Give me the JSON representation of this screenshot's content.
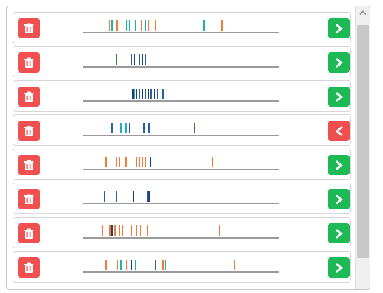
{
  "colors": {
    "red": "#f05050",
    "green": "#1db954",
    "orange": "#f27b35",
    "teal": "#18b4b4",
    "blue": "#2c5fa0",
    "navy": "#1d3f7a",
    "darkgreen": "#3f7f3f",
    "line": "#9a9a9a"
  },
  "rows": [
    {
      "action": "right",
      "ticks": [
        {
          "pos": 0.13,
          "color": "orange"
        },
        {
          "pos": 0.145,
          "color": "teal"
        },
        {
          "pos": 0.17,
          "color": "orange"
        },
        {
          "pos": 0.22,
          "color": "teal"
        },
        {
          "pos": 0.235,
          "color": "teal"
        },
        {
          "pos": 0.265,
          "color": "teal"
        },
        {
          "pos": 0.295,
          "color": "orange"
        },
        {
          "pos": 0.315,
          "color": "teal"
        },
        {
          "pos": 0.33,
          "color": "orange"
        },
        {
          "pos": 0.365,
          "color": "orange"
        },
        {
          "pos": 0.615,
          "color": "teal"
        },
        {
          "pos": 0.705,
          "color": "orange"
        }
      ]
    },
    {
      "action": "right",
      "ticks": [
        {
          "pos": 0.165,
          "color": "darkgreen"
        },
        {
          "pos": 0.245,
          "color": "blue"
        },
        {
          "pos": 0.26,
          "color": "navy"
        },
        {
          "pos": 0.285,
          "color": "blue"
        },
        {
          "pos": 0.3,
          "color": "navy"
        },
        {
          "pos": 0.315,
          "color": "blue"
        }
      ]
    },
    {
      "action": "right",
      "ticks": [
        {
          "pos": 0.25,
          "color": "navy"
        },
        {
          "pos": 0.26,
          "color": "teal"
        },
        {
          "pos": 0.27,
          "color": "navy"
        },
        {
          "pos": 0.285,
          "color": "blue"
        },
        {
          "pos": 0.3,
          "color": "navy"
        },
        {
          "pos": 0.315,
          "color": "blue"
        },
        {
          "pos": 0.33,
          "color": "navy"
        },
        {
          "pos": 0.345,
          "color": "blue"
        },
        {
          "pos": 0.36,
          "color": "navy"
        },
        {
          "pos": 0.375,
          "color": "blue"
        },
        {
          "pos": 0.405,
          "color": "blue"
        }
      ]
    },
    {
      "action": "left",
      "ticks": [
        {
          "pos": 0.145,
          "color": "blue"
        },
        {
          "pos": 0.19,
          "color": "teal"
        },
        {
          "pos": 0.215,
          "color": "teal"
        },
        {
          "pos": 0.235,
          "color": "blue"
        },
        {
          "pos": 0.31,
          "color": "blue"
        },
        {
          "pos": 0.335,
          "color": "blue"
        },
        {
          "pos": 0.565,
          "color": "darkgreen"
        }
      ]
    },
    {
      "action": "right",
      "ticks": [
        {
          "pos": 0.115,
          "color": "orange"
        },
        {
          "pos": 0.165,
          "color": "orange"
        },
        {
          "pos": 0.185,
          "color": "orange"
        },
        {
          "pos": 0.215,
          "color": "orange"
        },
        {
          "pos": 0.27,
          "color": "orange"
        },
        {
          "pos": 0.285,
          "color": "orange"
        },
        {
          "pos": 0.3,
          "color": "orange"
        },
        {
          "pos": 0.315,
          "color": "orange"
        },
        {
          "pos": 0.34,
          "color": "navy"
        },
        {
          "pos": 0.655,
          "color": "orange"
        }
      ]
    },
    {
      "action": "right",
      "ticks": [
        {
          "pos": 0.105,
          "color": "blue"
        },
        {
          "pos": 0.165,
          "color": "blue"
        },
        {
          "pos": 0.255,
          "color": "navy"
        },
        {
          "pos": 0.325,
          "color": "blue"
        },
        {
          "pos": 0.335,
          "color": "navy"
        }
      ]
    },
    {
      "action": "right",
      "ticks": [
        {
          "pos": 0.095,
          "color": "orange"
        },
        {
          "pos": 0.135,
          "color": "orange"
        },
        {
          "pos": 0.145,
          "color": "navy"
        },
        {
          "pos": 0.16,
          "color": "orange"
        },
        {
          "pos": 0.185,
          "color": "orange"
        },
        {
          "pos": 0.2,
          "color": "orange"
        },
        {
          "pos": 0.245,
          "color": "orange"
        },
        {
          "pos": 0.27,
          "color": "orange"
        },
        {
          "pos": 0.29,
          "color": "orange"
        },
        {
          "pos": 0.325,
          "color": "orange"
        },
        {
          "pos": 0.69,
          "color": "orange"
        }
      ]
    },
    {
      "action": "right",
      "ticks": [
        {
          "pos": 0.115,
          "color": "orange"
        },
        {
          "pos": 0.175,
          "color": "orange"
        },
        {
          "pos": 0.19,
          "color": "teal"
        },
        {
          "pos": 0.22,
          "color": "orange"
        },
        {
          "pos": 0.245,
          "color": "navy"
        },
        {
          "pos": 0.265,
          "color": "teal"
        },
        {
          "pos": 0.365,
          "color": "blue"
        },
        {
          "pos": 0.405,
          "color": "orange"
        },
        {
          "pos": 0.42,
          "color": "teal"
        },
        {
          "pos": 0.77,
          "color": "orange"
        }
      ]
    }
  ]
}
